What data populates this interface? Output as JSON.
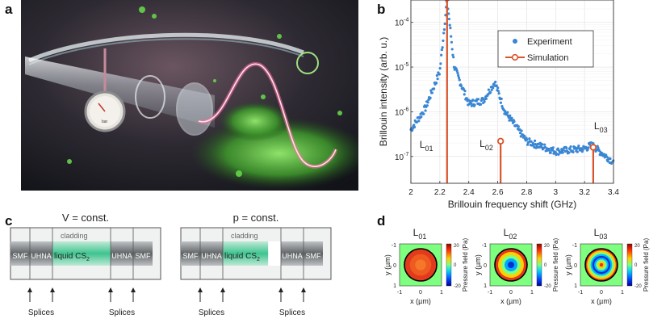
{
  "panels": {
    "a": "a",
    "b": "b",
    "c": "c",
    "d": "d"
  },
  "photo": {
    "gauge_label": "bar"
  },
  "chart_data": {
    "type": "scatter",
    "title": "",
    "xlabel": "Brillouin frequency shift (GHz)",
    "ylabel": "Brillouin intensity (arb. u.)",
    "xlim": [
      2.0,
      3.4
    ],
    "ylim_log10": [
      -7.6,
      -3.5
    ],
    "x_ticks": [
      "2",
      "2.2",
      "2.4",
      "2.6",
      "2.8",
      "3",
      "3.2",
      "3.4"
    ],
    "y_ticks": [
      {
        "base": "10",
        "exp": "-4",
        "log": -4
      },
      {
        "base": "10",
        "exp": "-5",
        "log": -5
      },
      {
        "base": "10",
        "exp": "-6",
        "log": -6
      },
      {
        "base": "10",
        "exp": "-7",
        "log": -7
      }
    ],
    "legend": {
      "position": "top-right",
      "entries": [
        "Experiment",
        "Simulation"
      ]
    },
    "experiment_key_points": [
      {
        "x": 2.0,
        "y": 4e-07
      },
      {
        "x": 2.1,
        "y": 1.2e-06
      },
      {
        "x": 2.2,
        "y": 8e-06
      },
      {
        "x": 2.25,
        "y": 0.00033
      },
      {
        "x": 2.3,
        "y": 1e-05
      },
      {
        "x": 2.4,
        "y": 1.5e-06
      },
      {
        "x": 2.5,
        "y": 1.8e-06
      },
      {
        "x": 2.58,
        "y": 4.6e-06
      },
      {
        "x": 2.65,
        "y": 1e-06
      },
      {
        "x": 2.8,
        "y": 2.2e-07
      },
      {
        "x": 3.0,
        "y": 1.3e-07
      },
      {
        "x": 3.2,
        "y": 1.5e-07
      },
      {
        "x": 3.25,
        "y": 1.8e-07
      },
      {
        "x": 3.4,
        "y": 7.5e-08
      }
    ],
    "simulation_peaks": [
      {
        "mode": "L",
        "sub": "01",
        "x": 2.25,
        "y": 0.00035
      },
      {
        "mode": "L",
        "sub": "02",
        "x": 2.62,
        "y": 2.2e-07
      },
      {
        "mode": "L",
        "sub": "03",
        "x": 3.26,
        "y": 1.6e-07
      }
    ],
    "colors": {
      "experiment": "#3a86d4",
      "simulation": "#d9542b"
    }
  },
  "schematics": [
    {
      "title": "V = const.",
      "cladding": "cladding",
      "segments": [
        "SMF",
        "UHNA",
        "liquid CS",
        "UHNA",
        "SMF"
      ],
      "sub2": "2",
      "splices": [
        "Splices",
        "Splices"
      ],
      "fill": 1.0
    },
    {
      "title": "p = const.",
      "cladding": "cladding",
      "segments": [
        "SMF",
        "UHNA",
        "liquid CS",
        "UHNA",
        "SMF"
      ],
      "sub2": "2",
      "splices": [
        "Splices",
        "Splices"
      ],
      "fill": 0.78
    }
  ],
  "modes": {
    "titles": [
      {
        "L": "L",
        "sub": "01"
      },
      {
        "L": "L",
        "sub": "02"
      },
      {
        "L": "L",
        "sub": "03"
      }
    ],
    "ylabel": "y (µm)",
    "xlabel": "x (µm)",
    "x_ticks": [
      "-1",
      "0",
      "1"
    ],
    "y_ticks": [
      "-1",
      "0",
      "1"
    ],
    "colorbar_label": "Pressure field (Pa)",
    "colorbar_ticks": [
      "20",
      "0",
      "-20"
    ],
    "rings": [
      1,
      2,
      3
    ]
  }
}
